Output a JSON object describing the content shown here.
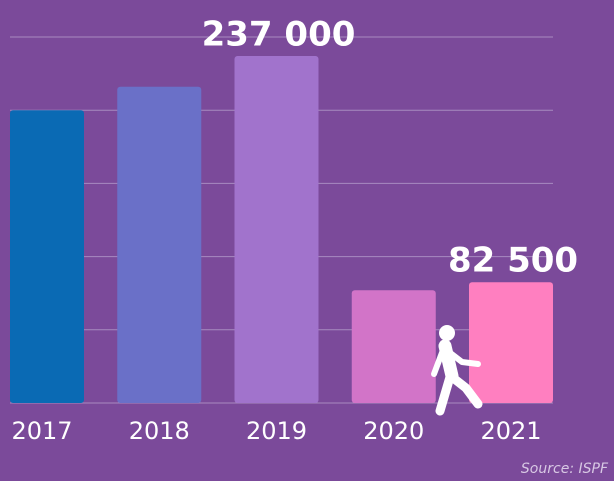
{
  "chart_data": {
    "type": "bar",
    "categories": [
      "2017",
      "2018",
      "2019",
      "2020",
      "2021"
    ],
    "values": [
      200000,
      216000,
      237000,
      77000,
      82500
    ],
    "value_labels": [
      null,
      null,
      "237 000",
      null,
      "82 500"
    ],
    "colors": [
      "#0a6ab4",
      "#6a70c8",
      "#a173cc",
      "#d274c8",
      "#ff7fc0"
    ],
    "ylim": [
      0,
      250000
    ],
    "yticks": [
      0,
      50000,
      100000,
      150000,
      200000,
      250000
    ],
    "grid": true,
    "source": "Source: ISPF"
  }
}
